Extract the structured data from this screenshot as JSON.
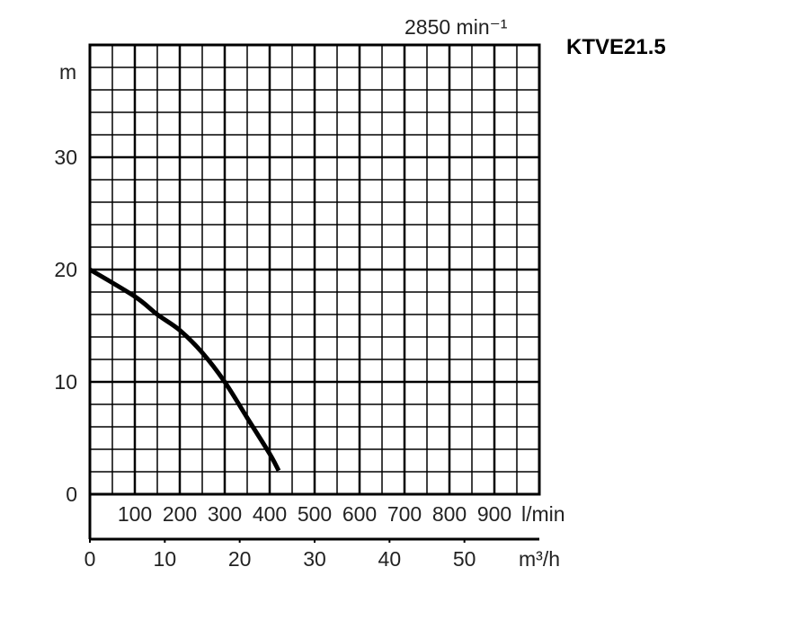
{
  "chart_data": {
    "type": "line",
    "title": "KTVE21.5",
    "subtitle": "2850 min⁻¹",
    "ylabel": "m",
    "ylim": [
      0,
      40
    ],
    "yticks": [
      0,
      10,
      20,
      30
    ],
    "xlabel": "l/min",
    "xlim": [
      0,
      1000
    ],
    "xticks": [
      100,
      200,
      300,
      400,
      500,
      600,
      700,
      800,
      900
    ],
    "x2label": "m³/h",
    "x2lim": [
      0,
      60
    ],
    "x2ticks": [
      0,
      10,
      20,
      30,
      40,
      50
    ],
    "grid": true,
    "series": [
      {
        "name": "KTVE21.5",
        "x": [
          0,
          100,
          150,
          200,
          250,
          300,
          350,
          400,
          420
        ],
        "y": [
          20,
          17.6,
          16,
          14.6,
          12.6,
          10,
          6.8,
          3.6,
          2.1
        ]
      }
    ]
  }
}
